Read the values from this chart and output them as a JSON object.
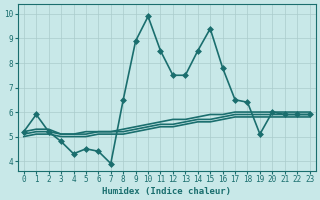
{
  "xlabel": "Humidex (Indice chaleur)",
  "bg_color": "#c8e8e8",
  "line_color": "#1a6e6e",
  "grid_color": "#aacccc",
  "x_ticks": [
    0,
    1,
    2,
    3,
    4,
    5,
    6,
    7,
    8,
    9,
    10,
    11,
    12,
    13,
    14,
    15,
    16,
    17,
    18,
    19,
    20,
    21,
    22,
    23
  ],
  "y_ticks": [
    4,
    5,
    6,
    7,
    8,
    9,
    10
  ],
  "ylim": [
    3.6,
    10.4
  ],
  "xlim": [
    -0.5,
    23.5
  ],
  "series": [
    {
      "x": [
        0,
        1,
        2,
        3,
        4,
        5,
        6,
        7,
        8,
        9,
        10,
        11,
        12,
        13,
        14,
        15,
        16,
        17,
        18,
        19,
        20,
        21,
        22,
        23
      ],
      "y": [
        5.2,
        5.9,
        5.2,
        4.8,
        4.3,
        4.5,
        4.4,
        3.9,
        6.5,
        8.9,
        9.9,
        8.5,
        7.5,
        7.5,
        8.5,
        9.4,
        7.8,
        6.5,
        6.4,
        5.1,
        6.0,
        5.9,
        5.9,
        5.9
      ],
      "marker": "D",
      "markersize": 3,
      "linewidth": 1.2
    },
    {
      "x": [
        0,
        1,
        2,
        3,
        4,
        5,
        6,
        7,
        8,
        9,
        10,
        11,
        12,
        13,
        14,
        15,
        16,
        17,
        18,
        19,
        20,
        21,
        22,
        23
      ],
      "y": [
        5.2,
        5.3,
        5.3,
        5.1,
        5.1,
        5.2,
        5.2,
        5.2,
        5.3,
        5.4,
        5.5,
        5.6,
        5.7,
        5.7,
        5.8,
        5.9,
        5.9,
        6.0,
        6.0,
        6.0,
        6.0,
        6.0,
        6.0,
        6.0
      ],
      "marker": "",
      "markersize": 0,
      "linewidth": 1.2
    },
    {
      "x": [
        0,
        1,
        2,
        3,
        4,
        5,
        6,
        7,
        8,
        9,
        10,
        11,
        12,
        13,
        14,
        15,
        16,
        17,
        18,
        19,
        20,
        21,
        22,
        23
      ],
      "y": [
        5.1,
        5.2,
        5.2,
        5.1,
        5.1,
        5.1,
        5.2,
        5.2,
        5.2,
        5.3,
        5.4,
        5.5,
        5.5,
        5.6,
        5.7,
        5.7,
        5.8,
        5.9,
        5.9,
        5.9,
        5.9,
        5.9,
        5.9,
        5.9
      ],
      "marker": "",
      "markersize": 0,
      "linewidth": 1.2
    },
    {
      "x": [
        0,
        1,
        2,
        3,
        4,
        5,
        6,
        7,
        8,
        9,
        10,
        11,
        12,
        13,
        14,
        15,
        16,
        17,
        18,
        19,
        20,
        21,
        22,
        23
      ],
      "y": [
        5.0,
        5.1,
        5.1,
        5.0,
        5.0,
        5.0,
        5.1,
        5.1,
        5.1,
        5.2,
        5.3,
        5.4,
        5.4,
        5.5,
        5.6,
        5.6,
        5.7,
        5.8,
        5.8,
        5.8,
        5.8,
        5.8,
        5.8,
        5.8
      ],
      "marker": "",
      "markersize": 0,
      "linewidth": 1.2
    }
  ]
}
